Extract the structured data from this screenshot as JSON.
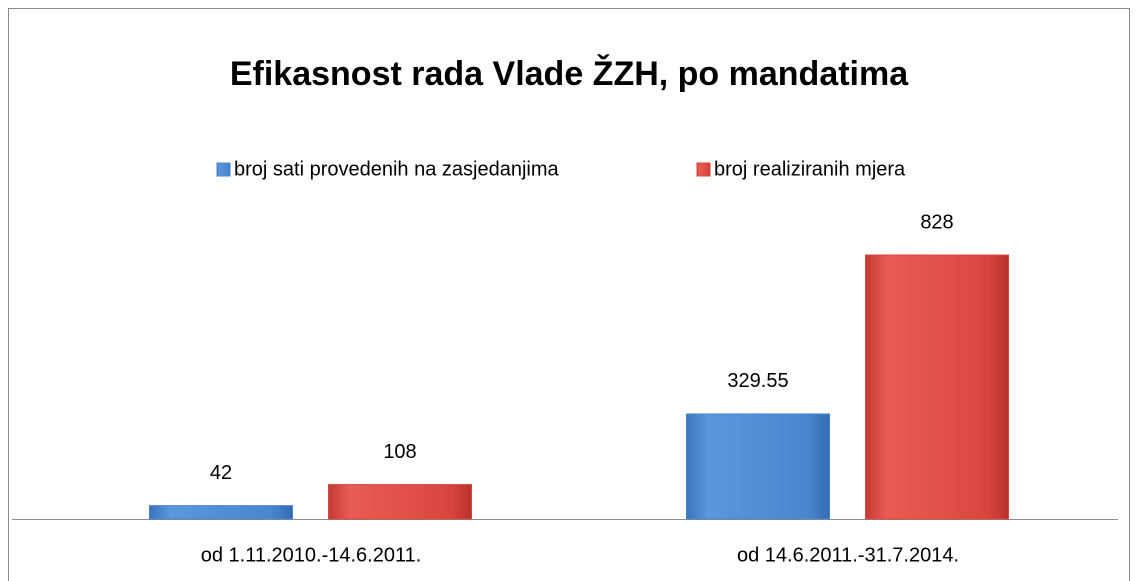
{
  "chart_data": {
    "type": "bar",
    "title": "Efikasnost rada Vlade ŽZH, po mandatima",
    "categories": [
      "od 1.11.2010.-14.6.2011.",
      "od 14.6.2011.-31.7.2014."
    ],
    "series": [
      {
        "name": "broj sati provedenih na zasjedanjima",
        "color": "#4a86d0",
        "values": [
          42,
          329.55
        ]
      },
      {
        "name": "broj realiziranih mjera",
        "color": "#d9463f",
        "values": [
          108,
          828
        ]
      }
    ],
    "legend": "top"
  }
}
